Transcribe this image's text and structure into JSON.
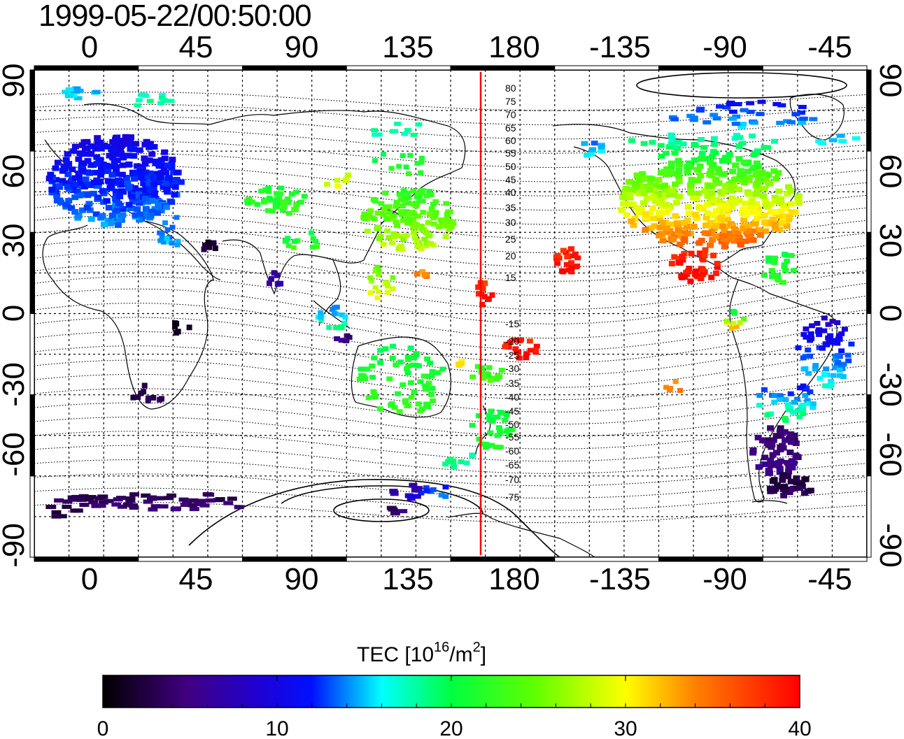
{
  "timestamp": "1999-05-22/00:50:00",
  "map": {
    "lon_ticks": [
      "0",
      "45",
      "90",
      "135",
      "180",
      "-135",
      "-90",
      "-45"
    ],
    "lat_ticks": [
      "90",
      "60",
      "30",
      "0",
      "-30",
      "-60",
      "-90"
    ],
    "terminator_longitude": 166,
    "contour_labels": [
      "80",
      "75",
      "70",
      "65",
      "60",
      "55",
      "50",
      "45",
      "40",
      "35",
      "30",
      "25",
      "20",
      "15",
      "-15",
      "-20",
      "-25",
      "-30",
      "-35",
      "-40",
      "-45",
      "-50",
      "-55",
      "-60",
      "-65",
      "-70",
      "-75"
    ]
  },
  "colorbar": {
    "title_main": "TEC  [10",
    "title_exp1": "16",
    "title_mid": "/m",
    "title_exp2": "2",
    "title_end": "]",
    "ticks": [
      "0",
      "10",
      "20",
      "30",
      "40"
    ],
    "min": 0,
    "max": 40
  },
  "colors": {
    "terminator": "#ff0000",
    "tec_scale": [
      "#000000",
      "#40007f",
      "#0000ff",
      "#00ffff",
      "#00ff00",
      "#ffff00",
      "#ff0000"
    ]
  }
}
